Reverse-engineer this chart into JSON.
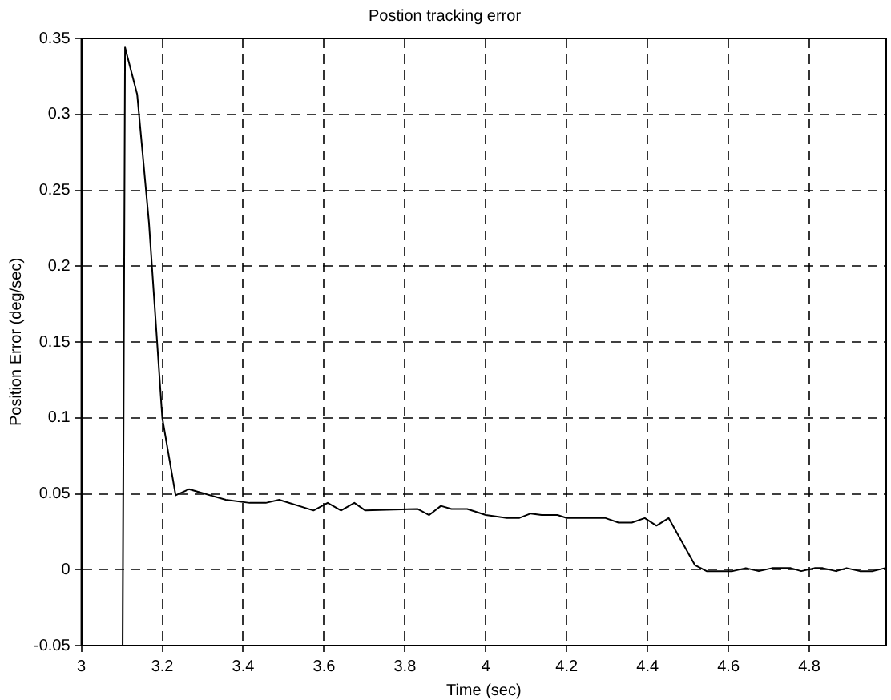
{
  "chart_data": {
    "type": "line",
    "title": "Postion tracking error",
    "xlabel": "Time (sec)",
    "ylabel": "Position Error (deg/sec)",
    "xlim": [
      3,
      4.99
    ],
    "xticks": [
      3,
      3.2,
      3.4,
      3.6,
      3.8,
      4,
      4.2,
      4.4,
      4.6,
      4.8
    ],
    "ylim": [
      -0.05,
      0.35
    ],
    "yticks": [
      -0.05,
      0,
      0.05,
      0.1,
      0.15,
      0.2,
      0.25,
      0.3,
      0.35
    ],
    "grid": true,
    "line_style": "solid",
    "marker": "none",
    "series": [
      {
        "color": "#000000",
        "x": [
          3.102,
          3.108,
          3.138,
          3.167,
          3.2,
          3.233,
          3.266,
          3.357,
          3.416,
          3.456,
          3.489,
          3.574,
          3.609,
          3.642,
          3.675,
          3.702,
          3.831,
          3.86,
          3.889,
          3.915,
          3.954,
          4.0,
          4.052,
          4.082,
          4.111,
          4.138,
          4.177,
          4.2,
          4.296,
          4.328,
          4.361,
          4.393,
          4.422,
          4.452,
          4.517,
          4.546,
          4.61,
          4.643,
          4.675,
          4.708,
          4.754,
          4.78,
          4.813,
          4.833,
          4.866,
          4.892,
          4.925,
          4.957,
          4.987
        ],
        "values": [
          -0.05,
          0.344,
          0.313,
          0.229,
          0.1,
          0.049,
          0.053,
          0.046,
          0.044,
          0.044,
          0.046,
          0.039,
          0.044,
          0.039,
          0.044,
          0.039,
          0.04,
          0.036,
          0.042,
          0.04,
          0.04,
          0.036,
          0.034,
          0.034,
          0.037,
          0.036,
          0.036,
          0.034,
          0.034,
          0.031,
          0.031,
          0.034,
          0.029,
          0.034,
          0.003,
          -0.001,
          -0.001,
          0.001,
          -0.001,
          0.001,
          0.001,
          -0.001,
          0.001,
          0.001,
          -0.001,
          0.001,
          -0.001,
          -0.001,
          0.001
        ]
      }
    ]
  }
}
